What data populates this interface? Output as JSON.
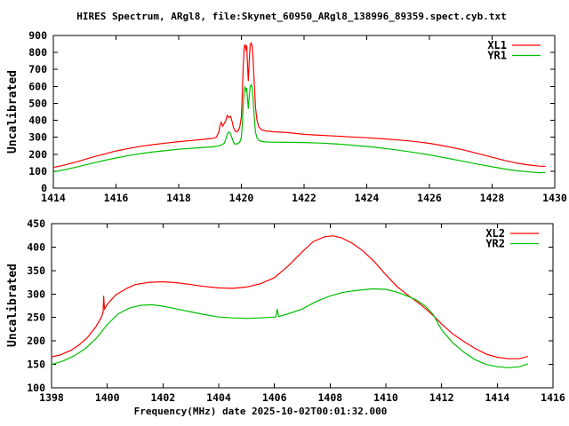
{
  "title": "HIRES Spectrum, ARgl8, file:Skynet_60950_ARgl8_138996_89359.spect.cyb.txt",
  "colors": {
    "background": "#ffffff",
    "axis": "#000000",
    "red": "#ff0000",
    "green": "#00c000"
  },
  "chart_data": [
    {
      "type": "line",
      "ylabel": "Uncalibrated",
      "xlabel": "",
      "xlim": [
        1414,
        1430
      ],
      "xtick_step": 2,
      "ylim": [
        0,
        900
      ],
      "ytick_step": 100,
      "grid": false,
      "legend_position": "top-right",
      "series": [
        {
          "name": "XL1",
          "color": "#ff0000",
          "points": [
            [
              1414.0,
              122
            ],
            [
              1414.4,
              138
            ],
            [
              1414.8,
              158
            ],
            [
              1415.2,
              180
            ],
            [
              1415.6,
              200
            ],
            [
              1416.0,
              219
            ],
            [
              1416.4,
              234
            ],
            [
              1416.8,
              247
            ],
            [
              1417.2,
              257
            ],
            [
              1417.6,
              266
            ],
            [
              1418.0,
              274
            ],
            [
              1418.4,
              281
            ],
            [
              1418.8,
              288
            ],
            [
              1419.1,
              294
            ],
            [
              1419.2,
              300
            ],
            [
              1419.28,
              330
            ],
            [
              1419.32,
              372
            ],
            [
              1419.36,
              388
            ],
            [
              1419.4,
              365
            ],
            [
              1419.44,
              378
            ],
            [
              1419.5,
              398
            ],
            [
              1419.55,
              428
            ],
            [
              1419.6,
              416
            ],
            [
              1419.65,
              424
            ],
            [
              1419.7,
              396
            ],
            [
              1419.75,
              356
            ],
            [
              1419.8,
              338
            ],
            [
              1419.85,
              332
            ],
            [
              1419.9,
              340
            ],
            [
              1419.95,
              362
            ],
            [
              1420.0,
              420
            ],
            [
              1420.03,
              560
            ],
            [
              1420.06,
              724
            ],
            [
              1420.09,
              830
            ],
            [
              1420.12,
              848
            ],
            [
              1420.15,
              810
            ],
            [
              1420.17,
              842
            ],
            [
              1420.2,
              705
            ],
            [
              1420.22,
              632
            ],
            [
              1420.25,
              748
            ],
            [
              1420.28,
              842
            ],
            [
              1420.31,
              856
            ],
            [
              1420.34,
              840
            ],
            [
              1420.37,
              778
            ],
            [
              1420.41,
              618
            ],
            [
              1420.45,
              476
            ],
            [
              1420.5,
              398
            ],
            [
              1420.56,
              360
            ],
            [
              1420.65,
              344
            ],
            [
              1420.8,
              337
            ],
            [
              1421.0,
              333
            ],
            [
              1421.5,
              327
            ],
            [
              1422.0,
              317
            ],
            [
              1422.5,
              312
            ],
            [
              1423.0,
              307
            ],
            [
              1423.5,
              302
            ],
            [
              1424.0,
              297
            ],
            [
              1424.5,
              291
            ],
            [
              1425.0,
              284
            ],
            [
              1425.5,
              276
            ],
            [
              1426.0,
              264
            ],
            [
              1426.5,
              248
            ],
            [
              1427.0,
              229
            ],
            [
              1427.5,
              206
            ],
            [
              1428.0,
              182
            ],
            [
              1428.4,
              163
            ],
            [
              1428.8,
              147
            ],
            [
              1429.2,
              136
            ],
            [
              1429.5,
              130
            ],
            [
              1429.7,
              128
            ]
          ]
        },
        {
          "name": "YR1",
          "color": "#00c000",
          "points": [
            [
              1414.0,
              96
            ],
            [
              1414.4,
              110
            ],
            [
              1414.8,
              127
            ],
            [
              1415.2,
              145
            ],
            [
              1415.6,
              162
            ],
            [
              1416.0,
              178
            ],
            [
              1416.4,
              192
            ],
            [
              1416.8,
              204
            ],
            [
              1417.2,
              214
            ],
            [
              1417.6,
              222
            ],
            [
              1418.0,
              229
            ],
            [
              1418.4,
              235
            ],
            [
              1418.8,
              240
            ],
            [
              1419.1,
              244
            ],
            [
              1419.25,
              248
            ],
            [
              1419.35,
              254
            ],
            [
              1419.45,
              264
            ],
            [
              1419.5,
              286
            ],
            [
              1419.55,
              318
            ],
            [
              1419.6,
              332
            ],
            [
              1419.65,
              324
            ],
            [
              1419.7,
              296
            ],
            [
              1419.75,
              270
            ],
            [
              1419.8,
              259
            ],
            [
              1419.88,
              262
            ],
            [
              1419.95,
              272
            ],
            [
              1420.0,
              300
            ],
            [
              1420.03,
              382
            ],
            [
              1420.06,
              490
            ],
            [
              1420.09,
              572
            ],
            [
              1420.12,
              600
            ],
            [
              1420.15,
              568
            ],
            [
              1420.17,
              590
            ],
            [
              1420.2,
              512
            ],
            [
              1420.22,
              468
            ],
            [
              1420.25,
              540
            ],
            [
              1420.28,
              596
            ],
            [
              1420.31,
              610
            ],
            [
              1420.34,
              594
            ],
            [
              1420.37,
              540
            ],
            [
              1420.41,
              420
            ],
            [
              1420.45,
              330
            ],
            [
              1420.5,
              296
            ],
            [
              1420.56,
              282
            ],
            [
              1420.65,
              275
            ],
            [
              1420.8,
              272
            ],
            [
              1421.0,
              271
            ],
            [
              1421.5,
              270
            ],
            [
              1422.0,
              269
            ],
            [
              1422.5,
              266
            ],
            [
              1423.0,
              261
            ],
            [
              1423.5,
              254
            ],
            [
              1424.0,
              246
            ],
            [
              1424.5,
              236
            ],
            [
              1425.0,
              224
            ],
            [
              1425.5,
              211
            ],
            [
              1426.0,
              196
            ],
            [
              1426.5,
              179
            ],
            [
              1427.0,
              161
            ],
            [
              1427.5,
              143
            ],
            [
              1428.0,
              126
            ],
            [
              1428.4,
              113
            ],
            [
              1428.8,
              102
            ],
            [
              1429.2,
              95
            ],
            [
              1429.5,
              91
            ],
            [
              1429.7,
              92
            ]
          ]
        }
      ]
    },
    {
      "type": "line",
      "ylabel": "Uncalibrated",
      "xlabel": "Frequency(MHz) date 2025-10-02T00:01:32.000",
      "xlim": [
        1398,
        1416
      ],
      "xtick_step": 2,
      "ylim": [
        100,
        450
      ],
      "ytick_step": 50,
      "grid": false,
      "legend_position": "top-right",
      "series": [
        {
          "name": "XL2",
          "color": "#ff0000",
          "points": [
            [
              1398.0,
              166
            ],
            [
              1398.3,
              170
            ],
            [
              1398.7,
              180
            ],
            [
              1399.0,
              192
            ],
            [
              1399.3,
              208
            ],
            [
              1399.6,
              231
            ],
            [
              1399.8,
              252
            ],
            [
              1399.85,
              262
            ],
            [
              1399.87,
              296
            ],
            [
              1399.9,
              268
            ],
            [
              1400.0,
              278
            ],
            [
              1400.3,
              298
            ],
            [
              1400.7,
              312
            ],
            [
              1401.0,
              320
            ],
            [
              1401.5,
              325
            ],
            [
              1402.0,
              326
            ],
            [
              1402.5,
              324
            ],
            [
              1403.0,
              320
            ],
            [
              1403.5,
              316
            ],
            [
              1404.0,
              313
            ],
            [
              1404.5,
              312
            ],
            [
              1405.0,
              315
            ],
            [
              1405.5,
              322
            ],
            [
              1406.0,
              335
            ],
            [
              1406.5,
              360
            ],
            [
              1407.0,
              390
            ],
            [
              1407.4,
              412
            ],
            [
              1407.8,
              422
            ],
            [
              1408.1,
              424
            ],
            [
              1408.4,
              420
            ],
            [
              1408.8,
              408
            ],
            [
              1409.2,
              391
            ],
            [
              1409.6,
              368
            ],
            [
              1410.0,
              341
            ],
            [
              1410.4,
              316
            ],
            [
              1410.8,
              297
            ],
            [
              1411.1,
              284
            ],
            [
              1411.4,
              270
            ],
            [
              1411.7,
              254
            ],
            [
              1412.0,
              236
            ],
            [
              1412.4,
              215
            ],
            [
              1412.8,
              199
            ],
            [
              1413.2,
              184
            ],
            [
              1413.6,
              172
            ],
            [
              1414.0,
              165
            ],
            [
              1414.4,
              162
            ],
            [
              1414.8,
              162
            ],
            [
              1415.1,
              167
            ]
          ]
        },
        {
          "name": "YR2",
          "color": "#00c000",
          "points": [
            [
              1398.0,
              150
            ],
            [
              1398.4,
              157
            ],
            [
              1398.8,
              168
            ],
            [
              1399.2,
              183
            ],
            [
              1399.6,
              205
            ],
            [
              1400.0,
              235
            ],
            [
              1400.4,
              258
            ],
            [
              1400.8,
              270
            ],
            [
              1401.2,
              276
            ],
            [
              1401.6,
              277
            ],
            [
              1402.0,
              274
            ],
            [
              1402.5,
              268
            ],
            [
              1403.0,
              262
            ],
            [
              1403.5,
              256
            ],
            [
              1404.0,
              251
            ],
            [
              1404.5,
              249
            ],
            [
              1405.0,
              248
            ],
            [
              1405.5,
              249
            ],
            [
              1406.05,
              251
            ],
            [
              1406.1,
              268
            ],
            [
              1406.15,
              252
            ],
            [
              1406.5,
              258
            ],
            [
              1407.0,
              268
            ],
            [
              1407.5,
              284
            ],
            [
              1408.0,
              296
            ],
            [
              1408.5,
              304
            ],
            [
              1409.0,
              308
            ],
            [
              1409.5,
              311
            ],
            [
              1410.0,
              310
            ],
            [
              1410.4,
              304
            ],
            [
              1410.8,
              295
            ],
            [
              1411.1,
              287
            ],
            [
              1411.4,
              275
            ],
            [
              1411.7,
              256
            ],
            [
              1412.0,
              224
            ],
            [
              1412.4,
              196
            ],
            [
              1412.8,
              176
            ],
            [
              1413.2,
              160
            ],
            [
              1413.6,
              150
            ],
            [
              1414.0,
              145
            ],
            [
              1414.4,
              143
            ],
            [
              1414.8,
              145
            ],
            [
              1415.1,
              151
            ]
          ]
        }
      ]
    }
  ]
}
